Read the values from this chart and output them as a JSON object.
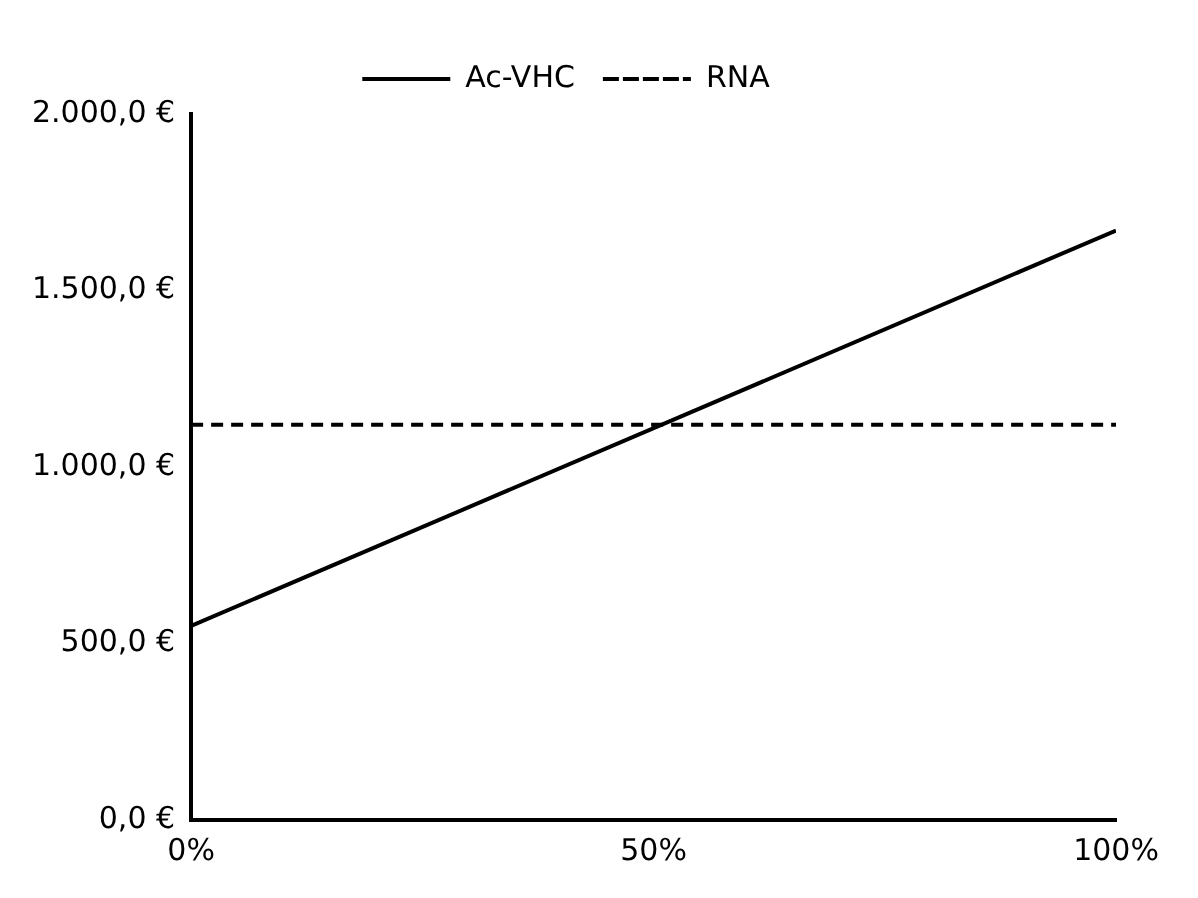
{
  "chart_data": {
    "type": "line",
    "x": [
      0,
      100
    ],
    "series": [
      {
        "name": "Ac-VHC",
        "color": "#000000",
        "values": [
          550,
          1670
        ],
        "line_style": "solid"
      },
      {
        "name": "RNA",
        "color": "#000000",
        "values": [
          1120,
          1120
        ],
        "line_style": "dashed"
      }
    ],
    "xlim": [
      0,
      100
    ],
    "xticks": [
      {
        "value": 0,
        "label": "0%"
      },
      {
        "value": 50,
        "label": "50%"
      },
      {
        "value": 100,
        "label": "100%"
      }
    ],
    "ylim": [
      0,
      2000
    ],
    "yticks": [
      {
        "value": 0,
        "label": "0,0 €"
      },
      {
        "value": 500,
        "label": "500,0 €"
      },
      {
        "value": 1000,
        "label": "1.000,0 €"
      },
      {
        "value": 1500,
        "label": "1.500,0 €"
      },
      {
        "value": 2000,
        "label": "2.000,0 €"
      }
    ],
    "grid": false,
    "legend": "top",
    "marker": "none"
  }
}
